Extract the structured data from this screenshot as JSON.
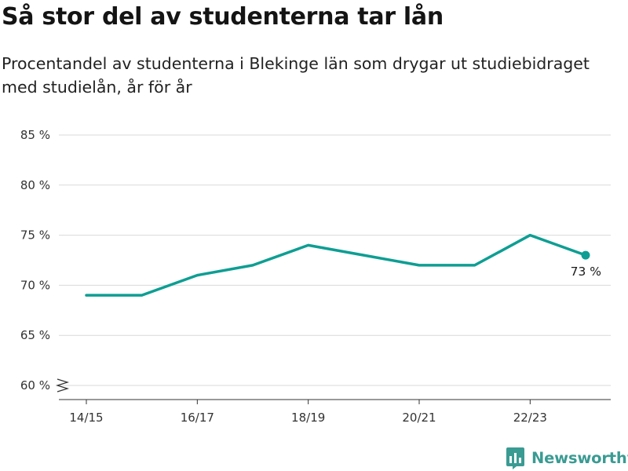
{
  "header": {
    "title": "Så stor del av studenterna tar lån",
    "subtitle": "Procentandel av studenterna i Blekinge län som drygar ut studiebidraget med studielån, år för år"
  },
  "brand": {
    "name": "Newsworthy",
    "icon": "newsworthy-logo-icon",
    "color": "#3a9b93"
  },
  "chart_data": {
    "type": "line",
    "title": "Så stor del av studenterna tar lån",
    "subtitle": "Procentandel av studenterna i Blekinge län som drygar ut studiebidraget med studielån, år för år",
    "x": [
      "14/15",
      "15/16",
      "16/17",
      "17/18",
      "18/19",
      "19/20",
      "20/21",
      "21/22",
      "22/23",
      "23/24"
    ],
    "x_tick_labels": [
      "14/15",
      "16/17",
      "18/19",
      "20/21",
      "22/23"
    ],
    "series": [
      {
        "values": [
          69,
          69,
          71,
          72,
          74,
          73,
          72,
          72,
          75,
          73
        ],
        "color": "#0e9e93"
      }
    ],
    "y_ticks": [
      60,
      65,
      70,
      75,
      80,
      85
    ],
    "y_tick_suffix": " %",
    "ylim": [
      59,
      86
    ],
    "y_axis_break": true,
    "grid": true,
    "end_label": "73 %"
  }
}
